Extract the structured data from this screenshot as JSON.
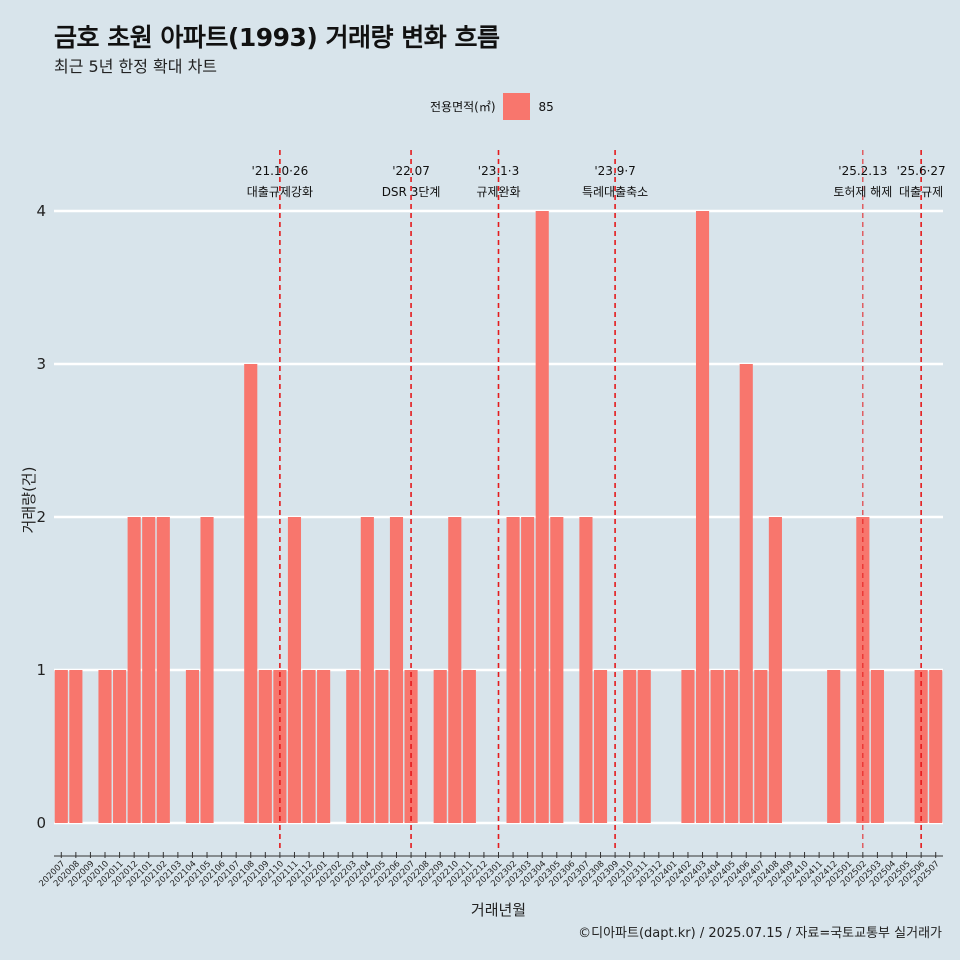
{
  "header": {
    "title": "금호 초원 아파트(1993) 거래량 변화 흐름",
    "subtitle": "최근 5년 한정 확대 차트"
  },
  "legend": {
    "title": "전용면적(㎡)",
    "items": [
      {
        "label": "85",
        "color": "#f8766d"
      }
    ]
  },
  "caption": "©디아파트(dapt.kr) / 2025.07.15 / 자료=국토교통부 실거래가",
  "colors": {
    "background": "#d8e4eb",
    "bar": "#f8766d",
    "grid": "#ffffff",
    "event_line": "#e41a1c"
  },
  "chart_data": {
    "type": "bar",
    "title": "금호 초원 아파트(1993) 거래량 변화 흐름",
    "subtitle": "최근 5년 한정 확대 차트",
    "xlabel": "거래년월",
    "ylabel": "거래량(건)",
    "ylim": [
      0,
      4
    ],
    "yticks": [
      0,
      1,
      2,
      3,
      4
    ],
    "grid": true,
    "legend_position": "top",
    "categories": [
      "202007",
      "202008",
      "202009",
      "202010",
      "202011",
      "202012",
      "202101",
      "202102",
      "202103",
      "202104",
      "202105",
      "202106",
      "202107",
      "202108",
      "202109",
      "202110",
      "202111",
      "202112",
      "202201",
      "202202",
      "202203",
      "202204",
      "202205",
      "202206",
      "202207",
      "202208",
      "202209",
      "202210",
      "202211",
      "202212",
      "202301",
      "202302",
      "202303",
      "202304",
      "202305",
      "202306",
      "202307",
      "202308",
      "202309",
      "202310",
      "202311",
      "202312",
      "202401",
      "202402",
      "202403",
      "202404",
      "202405",
      "202406",
      "202407",
      "202408",
      "202409",
      "202410",
      "202411",
      "202412",
      "202501",
      "202502",
      "202503",
      "202504",
      "202505",
      "202506",
      "202507"
    ],
    "series": [
      {
        "name": "85",
        "values": [
          1,
          1,
          0,
          1,
          1,
          2,
          2,
          2,
          0,
          1,
          2,
          0,
          0,
          3,
          1,
          1,
          2,
          1,
          1,
          0,
          1,
          2,
          1,
          2,
          1,
          0,
          1,
          2,
          1,
          0,
          0,
          2,
          2,
          4,
          2,
          0,
          2,
          1,
          0,
          1,
          1,
          0,
          0,
          1,
          4,
          1,
          1,
          3,
          1,
          2,
          0,
          0,
          0,
          1,
          0,
          2,
          1,
          0,
          0,
          1,
          1
        ]
      }
    ],
    "events": [
      {
        "date": "'21.10·26",
        "label": "대출규제강화",
        "at": "202110"
      },
      {
        "date": "'22.07",
        "label": "DSR 3단계",
        "at": "202207"
      },
      {
        "date": "'23.1·3",
        "label": "규제완화",
        "at": "202301"
      },
      {
        "date": "'23.9·7",
        "label": "특례대출축소",
        "at": "202309"
      },
      {
        "date": "'25.2.13",
        "label": "토허제 해제",
        "at": "202502"
      },
      {
        "date": "'25.6·27",
        "label": "대출규제",
        "at": "202506"
      }
    ]
  }
}
